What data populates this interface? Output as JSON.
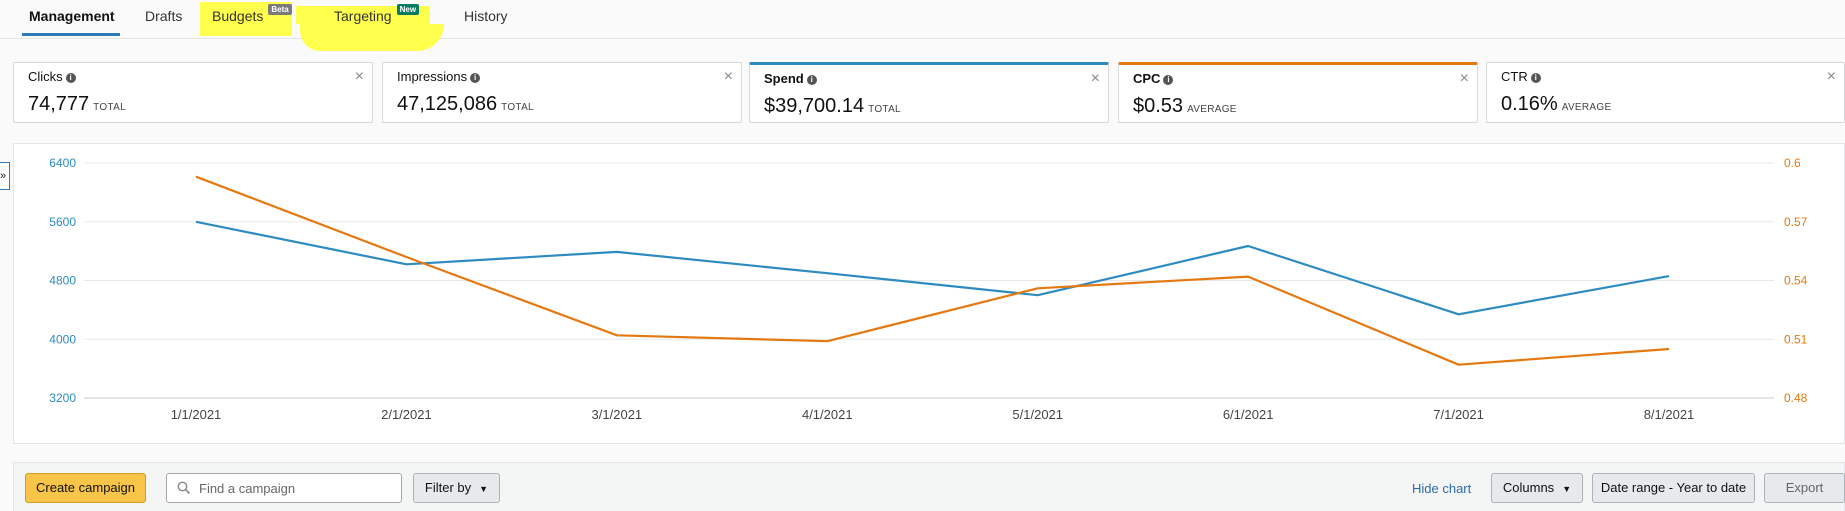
{
  "tabs": [
    {
      "label": "Management",
      "active": true
    },
    {
      "label": "Drafts"
    },
    {
      "label": "Budgets",
      "badge": "Beta"
    },
    {
      "label": "Targeting",
      "badge": "New"
    },
    {
      "label": "History"
    }
  ],
  "metrics": [
    {
      "label": "Clicks",
      "value": "74,777",
      "unit": "TOTAL",
      "close": "×"
    },
    {
      "label": "Impressions",
      "value": "47,125,086",
      "unit": "TOTAL",
      "close": "×"
    },
    {
      "label": "Spend",
      "value": "$39,700.14",
      "unit": "TOTAL",
      "close": "×",
      "color": "#2e8bc0"
    },
    {
      "label": "CPC",
      "value": "$0.53",
      "unit": "AVERAGE",
      "close": "×",
      "color": "#e47911"
    },
    {
      "label": "CTR",
      "value": "0.16%",
      "unit": "AVERAGE",
      "close": "×"
    }
  ],
  "chart_data": {
    "type": "line",
    "x": [
      "1/1/2021",
      "2/1/2021",
      "3/1/2021",
      "4/1/2021",
      "5/1/2021",
      "6/1/2021",
      "7/1/2021",
      "8/1/2021"
    ],
    "series": [
      {
        "metric": "Spend",
        "axis": "left",
        "color": "#2e8bc0",
        "values": [
          5600,
          5020,
          5190,
          4900,
          4600,
          5270,
          4340,
          4860
        ]
      },
      {
        "metric": "CPC",
        "axis": "right",
        "color": "#e47911",
        "values": [
          0.593,
          0.552,
          0.512,
          0.509,
          0.536,
          0.542,
          0.497,
          0.505
        ]
      }
    ],
    "y_left": {
      "ticks": [
        "6400",
        "5600",
        "4800",
        "4000",
        "3200"
      ],
      "range": [
        3200,
        6400
      ],
      "color": "#2e8bc0"
    },
    "y_right": {
      "ticks": [
        "0.6",
        "0.57",
        "0.54",
        "0.51",
        "0.48"
      ],
      "range": [
        0.48,
        0.6
      ],
      "color": "#e47911"
    },
    "grid": true
  },
  "toolbar": {
    "create_label": "Create campaign",
    "search_placeholder": "Find a campaign",
    "filter_label": "Filter by",
    "hide_chart_label": "Hide chart",
    "columns_label": "Columns",
    "date_range_label": "Date range - Year to date",
    "export_label": "Export"
  },
  "chart_toggle": "»"
}
